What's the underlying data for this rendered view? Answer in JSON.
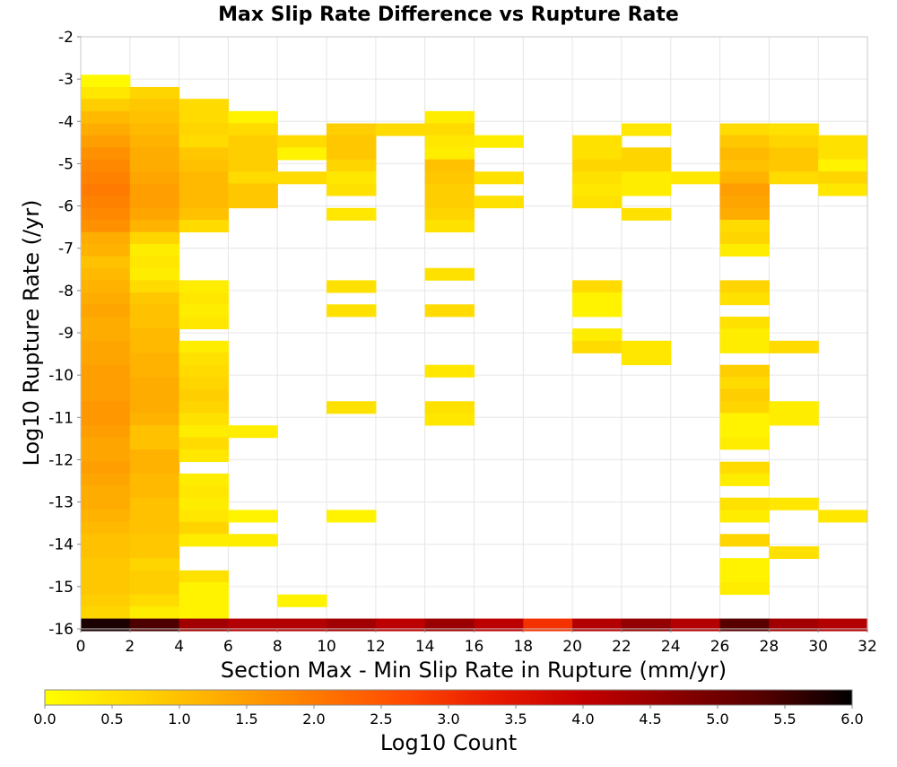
{
  "chart_data": {
    "type": "heatmap",
    "title": "Max Slip Rate Difference vs Rupture Rate",
    "xlabel": "Section Max - Min Slip Rate in Rupture (mm/yr)",
    "ylabel": "Log10 Rupture Rate (/yr)",
    "xlim": [
      0,
      32
    ],
    "ylim": [
      -16,
      -2
    ],
    "x_ticks": [
      "0",
      "2",
      "4",
      "6",
      "8",
      "10",
      "12",
      "14",
      "16",
      "18",
      "20",
      "22",
      "24",
      "26",
      "28",
      "30",
      "32"
    ],
    "y_ticks": [
      "-2",
      "-3",
      "-4",
      "-5",
      "-6",
      "-7",
      "-8",
      "-9",
      "-10",
      "-11",
      "-12",
      "-13",
      "-14",
      "-15",
      "-16"
    ],
    "bin_width_x": 2,
    "bin_height_y": 0.2857,
    "grid": true,
    "colorbar": {
      "label": "Log10 Count",
      "range": [
        0,
        6
      ],
      "ticks": [
        "0.0",
        "0.5",
        "1.0",
        "1.5",
        "2.0",
        "2.5",
        "3.0",
        "3.5",
        "4.0",
        "4.5",
        "5.0",
        "5.5",
        "6.0"
      ],
      "placement": "bottom",
      "colors": [
        "#ffff00",
        "#ffd700",
        "#ffaa00",
        "#ff7a00",
        "#ff4a00",
        "#e81a00",
        "#c40000",
        "#8c0000",
        "#550000",
        "#000000"
      ]
    },
    "cells": [
      {
        "x": 0,
        "y": -3.04,
        "v": 0.1
      },
      {
        "x": 0,
        "y": -3.33,
        "v": 0.4
      },
      {
        "x": 0,
        "y": -3.61,
        "v": 0.8
      },
      {
        "x": 0,
        "y": -3.9,
        "v": 1.1
      },
      {
        "x": 0,
        "y": -4.19,
        "v": 1.3
      },
      {
        "x": 0,
        "y": -4.47,
        "v": 1.5
      },
      {
        "x": 0,
        "y": -4.76,
        "v": 1.7
      },
      {
        "x": 0,
        "y": -5.04,
        "v": 1.8
      },
      {
        "x": 0,
        "y": -5.33,
        "v": 1.9
      },
      {
        "x": 0,
        "y": -5.61,
        "v": 2.0
      },
      {
        "x": 0,
        "y": -5.9,
        "v": 1.9
      },
      {
        "x": 0,
        "y": -6.19,
        "v": 1.8
      },
      {
        "x": 0,
        "y": -6.47,
        "v": 1.7
      },
      {
        "x": 0,
        "y": -6.76,
        "v": 1.3
      },
      {
        "x": 0,
        "y": -7.04,
        "v": 1.2
      },
      {
        "x": 0,
        "y": -7.33,
        "v": 1.0
      },
      {
        "x": 0,
        "y": -7.61,
        "v": 1.1
      },
      {
        "x": 0,
        "y": -7.9,
        "v": 1.2
      },
      {
        "x": 0,
        "y": -8.19,
        "v": 1.3
      },
      {
        "x": 0,
        "y": -8.47,
        "v": 1.4
      },
      {
        "x": 0,
        "y": -8.76,
        "v": 1.3
      },
      {
        "x": 0,
        "y": -9.04,
        "v": 1.3
      },
      {
        "x": 0,
        "y": -9.33,
        "v": 1.4
      },
      {
        "x": 0,
        "y": -9.61,
        "v": 1.4
      },
      {
        "x": 0,
        "y": -9.9,
        "v": 1.5
      },
      {
        "x": 0,
        "y": -10.19,
        "v": 1.5
      },
      {
        "x": 0,
        "y": -10.47,
        "v": 1.5
      },
      {
        "x": 0,
        "y": -10.76,
        "v": 1.6
      },
      {
        "x": 0,
        "y": -11.04,
        "v": 1.6
      },
      {
        "x": 0,
        "y": -11.33,
        "v": 1.5
      },
      {
        "x": 0,
        "y": -11.61,
        "v": 1.4
      },
      {
        "x": 0,
        "y": -11.9,
        "v": 1.4
      },
      {
        "x": 0,
        "y": -12.19,
        "v": 1.5
      },
      {
        "x": 0,
        "y": -12.47,
        "v": 1.4
      },
      {
        "x": 0,
        "y": -12.76,
        "v": 1.3
      },
      {
        "x": 0,
        "y": -13.04,
        "v": 1.3
      },
      {
        "x": 0,
        "y": -13.33,
        "v": 1.2
      },
      {
        "x": 0,
        "y": -13.61,
        "v": 1.1
      },
      {
        "x": 0,
        "y": -13.9,
        "v": 1.0
      },
      {
        "x": 0,
        "y": -14.19,
        "v": 1.0
      },
      {
        "x": 0,
        "y": -14.47,
        "v": 0.9
      },
      {
        "x": 0,
        "y": -14.76,
        "v": 0.9
      },
      {
        "x": 0,
        "y": -15.04,
        "v": 0.9
      },
      {
        "x": 0,
        "y": -15.33,
        "v": 0.8
      },
      {
        "x": 0,
        "y": -15.61,
        "v": 0.7
      },
      {
        "x": 0,
        "y": -15.9,
        "v": 5.8
      },
      {
        "x": 2,
        "y": -3.33,
        "v": 0.7
      },
      {
        "x": 2,
        "y": -3.61,
        "v": 0.9
      },
      {
        "x": 2,
        "y": -3.9,
        "v": 1.0
      },
      {
        "x": 2,
        "y": -4.19,
        "v": 1.1
      },
      {
        "x": 2,
        "y": -4.47,
        "v": 1.2
      },
      {
        "x": 2,
        "y": -4.76,
        "v": 1.3
      },
      {
        "x": 2,
        "y": -5.04,
        "v": 1.3
      },
      {
        "x": 2,
        "y": -5.33,
        "v": 1.4
      },
      {
        "x": 2,
        "y": -5.61,
        "v": 1.5
      },
      {
        "x": 2,
        "y": -5.9,
        "v": 1.5
      },
      {
        "x": 2,
        "y": -6.19,
        "v": 1.4
      },
      {
        "x": 2,
        "y": -6.47,
        "v": 1.2
      },
      {
        "x": 2,
        "y": -6.76,
        "v": 0.7
      },
      {
        "x": 2,
        "y": -7.04,
        "v": 0.3
      },
      {
        "x": 2,
        "y": -7.33,
        "v": 0.4
      },
      {
        "x": 2,
        "y": -7.61,
        "v": 0.3
      },
      {
        "x": 2,
        "y": -7.9,
        "v": 0.6
      },
      {
        "x": 2,
        "y": -8.19,
        "v": 0.9
      },
      {
        "x": 2,
        "y": -8.47,
        "v": 1.0
      },
      {
        "x": 2,
        "y": -8.76,
        "v": 1.0
      },
      {
        "x": 2,
        "y": -9.04,
        "v": 1.1
      },
      {
        "x": 2,
        "y": -9.33,
        "v": 1.1
      },
      {
        "x": 2,
        "y": -9.61,
        "v": 1.2
      },
      {
        "x": 2,
        "y": -9.9,
        "v": 1.2
      },
      {
        "x": 2,
        "y": -10.19,
        "v": 1.3
      },
      {
        "x": 2,
        "y": -10.47,
        "v": 1.3
      },
      {
        "x": 2,
        "y": -10.76,
        "v": 1.3
      },
      {
        "x": 2,
        "y": -11.04,
        "v": 1.2
      },
      {
        "x": 2,
        "y": -11.33,
        "v": 1.0
      },
      {
        "x": 2,
        "y": -11.61,
        "v": 1.0
      },
      {
        "x": 2,
        "y": -11.9,
        "v": 1.2
      },
      {
        "x": 2,
        "y": -12.19,
        "v": 1.2
      },
      {
        "x": 2,
        "y": -12.47,
        "v": 1.1
      },
      {
        "x": 2,
        "y": -12.76,
        "v": 1.1
      },
      {
        "x": 2,
        "y": -13.04,
        "v": 1.0
      },
      {
        "x": 2,
        "y": -13.33,
        "v": 1.0
      },
      {
        "x": 2,
        "y": -13.61,
        "v": 1.0
      },
      {
        "x": 2,
        "y": -13.9,
        "v": 0.9
      },
      {
        "x": 2,
        "y": -14.19,
        "v": 0.9
      },
      {
        "x": 2,
        "y": -14.47,
        "v": 0.7
      },
      {
        "x": 2,
        "y": -14.76,
        "v": 0.8
      },
      {
        "x": 2,
        "y": -15.04,
        "v": 0.8
      },
      {
        "x": 2,
        "y": -15.33,
        "v": 0.6
      },
      {
        "x": 2,
        "y": -15.61,
        "v": 0.3
      },
      {
        "x": 2,
        "y": -15.9,
        "v": 5.4
      },
      {
        "x": 4,
        "y": -3.61,
        "v": 0.6
      },
      {
        "x": 4,
        "y": -3.9,
        "v": 0.6
      },
      {
        "x": 4,
        "y": -4.19,
        "v": 0.7
      },
      {
        "x": 4,
        "y": -4.47,
        "v": 0.6
      },
      {
        "x": 4,
        "y": -4.76,
        "v": 0.9
      },
      {
        "x": 4,
        "y": -5.04,
        "v": 1.0
      },
      {
        "x": 4,
        "y": -5.33,
        "v": 1.1
      },
      {
        "x": 4,
        "y": -5.61,
        "v": 1.1
      },
      {
        "x": 4,
        "y": -5.9,
        "v": 1.1
      },
      {
        "x": 4,
        "y": -6.19,
        "v": 1.0
      },
      {
        "x": 4,
        "y": -6.47,
        "v": 0.6
      },
      {
        "x": 4,
        "y": -7.9,
        "v": 0.3
      },
      {
        "x": 4,
        "y": -8.19,
        "v": 0.4
      },
      {
        "x": 4,
        "y": -8.47,
        "v": 0.3
      },
      {
        "x": 4,
        "y": -8.76,
        "v": 0.4
      },
      {
        "x": 4,
        "y": -9.33,
        "v": 0.3
      },
      {
        "x": 4,
        "y": -9.61,
        "v": 0.5
      },
      {
        "x": 4,
        "y": -9.9,
        "v": 0.6
      },
      {
        "x": 4,
        "y": -10.19,
        "v": 0.7
      },
      {
        "x": 4,
        "y": -10.47,
        "v": 0.8
      },
      {
        "x": 4,
        "y": -10.76,
        "v": 0.7
      },
      {
        "x": 4,
        "y": -11.04,
        "v": 0.5
      },
      {
        "x": 4,
        "y": -11.33,
        "v": 0.3
      },
      {
        "x": 4,
        "y": -11.61,
        "v": 0.6
      },
      {
        "x": 4,
        "y": -11.9,
        "v": 0.4
      },
      {
        "x": 4,
        "y": -12.47,
        "v": 0.3
      },
      {
        "x": 4,
        "y": -12.76,
        "v": 0.4
      },
      {
        "x": 4,
        "y": -13.04,
        "v": 0.3
      },
      {
        "x": 4,
        "y": -13.33,
        "v": 0.4
      },
      {
        "x": 4,
        "y": -13.61,
        "v": 0.7
      },
      {
        "x": 4,
        "y": -13.9,
        "v": 0.3
      },
      {
        "x": 4,
        "y": -14.76,
        "v": 0.5
      },
      {
        "x": 4,
        "y": -15.04,
        "v": 0.2
      },
      {
        "x": 4,
        "y": -15.33,
        "v": 0.2
      },
      {
        "x": 4,
        "y": -15.61,
        "v": 0.2
      },
      {
        "x": 4,
        "y": -15.9,
        "v": 4.4
      },
      {
        "x": 6,
        "y": -3.9,
        "v": 0.2
      },
      {
        "x": 6,
        "y": -4.19,
        "v": 0.6
      },
      {
        "x": 6,
        "y": -4.47,
        "v": 0.8
      },
      {
        "x": 6,
        "y": -4.76,
        "v": 0.8
      },
      {
        "x": 6,
        "y": -5.04,
        "v": 0.8
      },
      {
        "x": 6,
        "y": -5.33,
        "v": 0.6
      },
      {
        "x": 6,
        "y": -5.61,
        "v": 0.9
      },
      {
        "x": 6,
        "y": -5.9,
        "v": 0.9
      },
      {
        "x": 6,
        "y": -11.33,
        "v": 0.3
      },
      {
        "x": 6,
        "y": -13.33,
        "v": 0.2
      },
      {
        "x": 6,
        "y": -13.9,
        "v": 0.3
      },
      {
        "x": 6,
        "y": -15.9,
        "v": 4.2
      },
      {
        "x": 8,
        "y": -4.47,
        "v": 0.6
      },
      {
        "x": 8,
        "y": -4.76,
        "v": 0.2
      },
      {
        "x": 8,
        "y": -5.33,
        "v": 0.6
      },
      {
        "x": 8,
        "y": -15.33,
        "v": 0.2
      },
      {
        "x": 8,
        "y": -15.9,
        "v": 4.2
      },
      {
        "x": 10,
        "y": -4.19,
        "v": 0.8
      },
      {
        "x": 10,
        "y": -4.47,
        "v": 0.9
      },
      {
        "x": 10,
        "y": -4.76,
        "v": 0.9
      },
      {
        "x": 10,
        "y": -5.04,
        "v": 0.7
      },
      {
        "x": 10,
        "y": -5.33,
        "v": 0.4
      },
      {
        "x": 10,
        "y": -5.61,
        "v": 0.5
      },
      {
        "x": 10,
        "y": -6.19,
        "v": 0.4
      },
      {
        "x": 10,
        "y": -7.9,
        "v": 0.5
      },
      {
        "x": 10,
        "y": -8.47,
        "v": 0.5
      },
      {
        "x": 10,
        "y": -10.76,
        "v": 0.5
      },
      {
        "x": 10,
        "y": -13.33,
        "v": 0.2
      },
      {
        "x": 10,
        "y": -15.9,
        "v": 4.4
      },
      {
        "x": 12,
        "y": -4.19,
        "v": 0.6
      },
      {
        "x": 12,
        "y": -15.9,
        "v": 4.1
      },
      {
        "x": 14,
        "y": -3.9,
        "v": 0.3
      },
      {
        "x": 14,
        "y": -4.19,
        "v": 0.6
      },
      {
        "x": 14,
        "y": -4.47,
        "v": 0.4
      },
      {
        "x": 14,
        "y": -4.76,
        "v": 0.3
      },
      {
        "x": 14,
        "y": -5.04,
        "v": 1.0
      },
      {
        "x": 14,
        "y": -5.33,
        "v": 0.9
      },
      {
        "x": 14,
        "y": -5.61,
        "v": 0.8
      },
      {
        "x": 14,
        "y": -5.9,
        "v": 0.8
      },
      {
        "x": 14,
        "y": -6.19,
        "v": 0.7
      },
      {
        "x": 14,
        "y": -6.47,
        "v": 0.5
      },
      {
        "x": 14,
        "y": -7.61,
        "v": 0.5
      },
      {
        "x": 14,
        "y": -8.47,
        "v": 0.6
      },
      {
        "x": 14,
        "y": -9.9,
        "v": 0.4
      },
      {
        "x": 14,
        "y": -10.76,
        "v": 0.5
      },
      {
        "x": 14,
        "y": -11.04,
        "v": 0.4
      },
      {
        "x": 14,
        "y": -15.9,
        "v": 4.5
      },
      {
        "x": 16,
        "y": -4.47,
        "v": 0.3
      },
      {
        "x": 16,
        "y": -5.33,
        "v": 0.5
      },
      {
        "x": 16,
        "y": -5.9,
        "v": 0.5
      },
      {
        "x": 16,
        "y": -15.9,
        "v": 4.1
      },
      {
        "x": 18,
        "y": -15.9,
        "v": 3.0
      },
      {
        "x": 20,
        "y": -4.47,
        "v": 0.5
      },
      {
        "x": 20,
        "y": -4.76,
        "v": 0.5
      },
      {
        "x": 20,
        "y": -5.04,
        "v": 0.7
      },
      {
        "x": 20,
        "y": -5.33,
        "v": 0.5
      },
      {
        "x": 20,
        "y": -5.61,
        "v": 0.4
      },
      {
        "x": 20,
        "y": -5.9,
        "v": 0.5
      },
      {
        "x": 20,
        "y": -7.9,
        "v": 0.6
      },
      {
        "x": 20,
        "y": -8.19,
        "v": 0.2
      },
      {
        "x": 20,
        "y": -8.47,
        "v": 0.2
      },
      {
        "x": 20,
        "y": -9.04,
        "v": 0.3
      },
      {
        "x": 20,
        "y": -9.33,
        "v": 0.6
      },
      {
        "x": 20,
        "y": -15.9,
        "v": 4.2
      },
      {
        "x": 22,
        "y": -4.19,
        "v": 0.4
      },
      {
        "x": 22,
        "y": -4.76,
        "v": 0.7
      },
      {
        "x": 22,
        "y": -5.04,
        "v": 0.7
      },
      {
        "x": 22,
        "y": -5.33,
        "v": 0.3
      },
      {
        "x": 22,
        "y": -5.61,
        "v": 0.3
      },
      {
        "x": 22,
        "y": -6.19,
        "v": 0.5
      },
      {
        "x": 22,
        "y": -9.33,
        "v": 0.4
      },
      {
        "x": 22,
        "y": -9.61,
        "v": 0.4
      },
      {
        "x": 22,
        "y": -15.9,
        "v": 4.6
      },
      {
        "x": 24,
        "y": -5.33,
        "v": 0.4
      },
      {
        "x": 24,
        "y": -15.9,
        "v": 4.2
      },
      {
        "x": 26,
        "y": -4.19,
        "v": 0.6
      },
      {
        "x": 26,
        "y": -4.47,
        "v": 0.9
      },
      {
        "x": 26,
        "y": -4.76,
        "v": 1.1
      },
      {
        "x": 26,
        "y": -5.04,
        "v": 1.0
      },
      {
        "x": 26,
        "y": -5.33,
        "v": 1.2
      },
      {
        "x": 26,
        "y": -5.61,
        "v": 1.5
      },
      {
        "x": 26,
        "y": -5.9,
        "v": 1.4
      },
      {
        "x": 26,
        "y": -6.19,
        "v": 1.3
      },
      {
        "x": 26,
        "y": -6.47,
        "v": 0.6
      },
      {
        "x": 26,
        "y": -6.76,
        "v": 0.7
      },
      {
        "x": 26,
        "y": -7.04,
        "v": 0.3
      },
      {
        "x": 26,
        "y": -7.9,
        "v": 0.7
      },
      {
        "x": 26,
        "y": -8.19,
        "v": 0.5
      },
      {
        "x": 26,
        "y": -8.76,
        "v": 0.5
      },
      {
        "x": 26,
        "y": -9.04,
        "v": 0.3
      },
      {
        "x": 26,
        "y": -9.33,
        "v": 0.3
      },
      {
        "x": 26,
        "y": -9.9,
        "v": 0.8
      },
      {
        "x": 26,
        "y": -10.19,
        "v": 0.6
      },
      {
        "x": 26,
        "y": -10.47,
        "v": 0.8
      },
      {
        "x": 26,
        "y": -10.76,
        "v": 0.7
      },
      {
        "x": 26,
        "y": -11.04,
        "v": 0.2
      },
      {
        "x": 26,
        "y": -11.33,
        "v": 0.2
      },
      {
        "x": 26,
        "y": -11.61,
        "v": 0.3
      },
      {
        "x": 26,
        "y": -12.19,
        "v": 0.6
      },
      {
        "x": 26,
        "y": -12.47,
        "v": 0.3
      },
      {
        "x": 26,
        "y": -13.04,
        "v": 0.5
      },
      {
        "x": 26,
        "y": -13.33,
        "v": 0.3
      },
      {
        "x": 26,
        "y": -13.9,
        "v": 0.7
      },
      {
        "x": 26,
        "y": -14.47,
        "v": 0.2
      },
      {
        "x": 26,
        "y": -14.76,
        "v": 0.2
      },
      {
        "x": 26,
        "y": -15.04,
        "v": 0.3
      },
      {
        "x": 26,
        "y": -15.9,
        "v": 5.3
      },
      {
        "x": 28,
        "y": -4.19,
        "v": 0.5
      },
      {
        "x": 28,
        "y": -4.47,
        "v": 0.7
      },
      {
        "x": 28,
        "y": -4.76,
        "v": 0.9
      },
      {
        "x": 28,
        "y": -5.04,
        "v": 0.9
      },
      {
        "x": 28,
        "y": -5.33,
        "v": 0.6
      },
      {
        "x": 28,
        "y": -9.33,
        "v": 0.6
      },
      {
        "x": 28,
        "y": -10.76,
        "v": 0.3
      },
      {
        "x": 28,
        "y": -11.04,
        "v": 0.3
      },
      {
        "x": 28,
        "y": -13.04,
        "v": 0.4
      },
      {
        "x": 28,
        "y": -14.19,
        "v": 0.5
      },
      {
        "x": 28,
        "y": -15.9,
        "v": 4.4
      },
      {
        "x": 30,
        "y": -4.47,
        "v": 0.5
      },
      {
        "x": 30,
        "y": -4.76,
        "v": 0.5
      },
      {
        "x": 30,
        "y": -5.04,
        "v": 0.2
      },
      {
        "x": 30,
        "y": -5.33,
        "v": 0.7
      },
      {
        "x": 30,
        "y": -5.61,
        "v": 0.4
      },
      {
        "x": 30,
        "y": -13.33,
        "v": 0.4
      },
      {
        "x": 30,
        "y": -15.9,
        "v": 4.2
      }
    ]
  }
}
